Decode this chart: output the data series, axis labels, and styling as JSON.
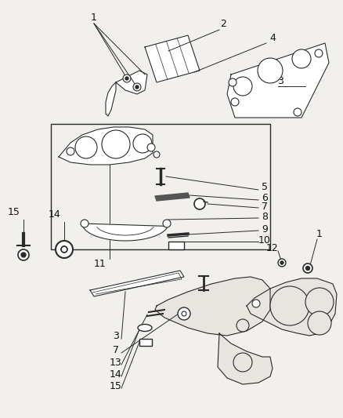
{
  "background_color": "#f2f0ec",
  "line_color": "#2a2a2a",
  "label_color": "#111111",
  "fig_width": 4.39,
  "fig_height": 5.33,
  "dpi": 100
}
